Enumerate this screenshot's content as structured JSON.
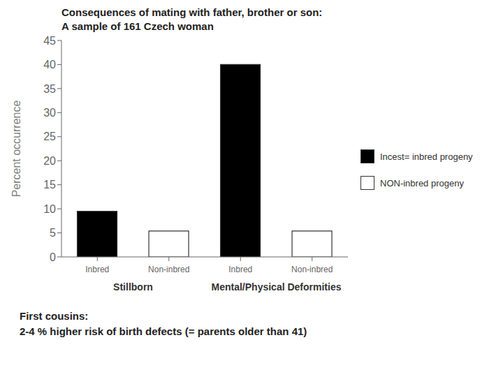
{
  "chart_data": {
    "type": "bar",
    "title": "Consequences of mating with father, brother or son:",
    "subtitle": "A sample of 161 Czech woman",
    "ylabel": "Percent occurrence",
    "categories": [
      "Stillborn",
      "Mental/Physical Deformities"
    ],
    "bar_labels": [
      "Inbred",
      "Non-inbred",
      "Inbred",
      "Non-inbred"
    ],
    "series": [
      {
        "name": "Incest= inbred progeny",
        "color": "#000000",
        "values": [
          9.5,
          40.0
        ]
      },
      {
        "name": "NON-inbred progeny",
        "color": "#ffffff",
        "values": [
          5.4,
          5.4
        ]
      }
    ],
    "ylim": [
      0,
      45
    ],
    "yticks": [
      0,
      5,
      10,
      15,
      20,
      25,
      30,
      35,
      40,
      45
    ],
    "grid": false,
    "legend": "right",
    "annotations": [
      "First cousins:",
      "2-4 % higher risk of birth defects (= parents older than 41)"
    ]
  }
}
